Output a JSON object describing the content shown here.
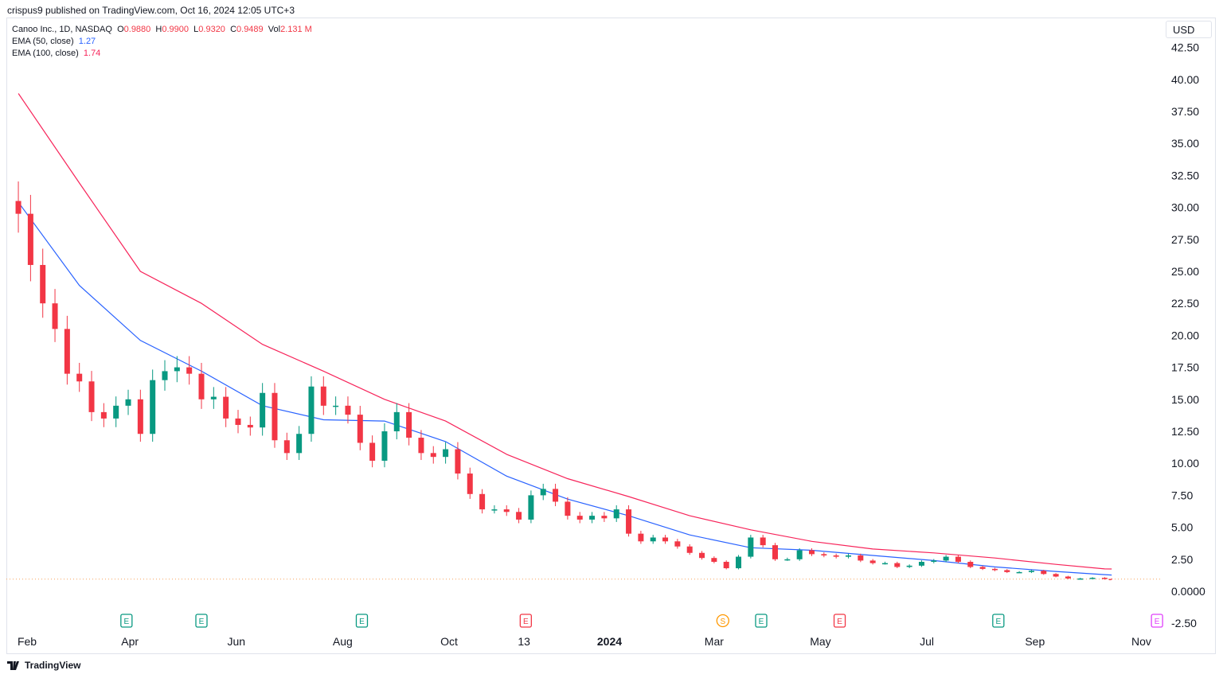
{
  "header": {
    "published": "crispus9 published on TradingView.com, Oct 16, 2024 12:05 UTC+3"
  },
  "legend": {
    "symbol": "Canoo Inc., 1D, NASDAQ",
    "o_label": "O",
    "o": "0.9880",
    "h_label": "H",
    "h": "0.9900",
    "l_label": "L",
    "l": "0.9320",
    "c_label": "C",
    "c": "0.9489",
    "vol_label": "Vol",
    "vol": "2.131 M",
    "ema50_label": "EMA (50, close)",
    "ema50": "1.27",
    "ema100_label": "EMA (100, close)",
    "ema100": "1.74"
  },
  "currency": "USD",
  "footer": {
    "brand": "TradingView"
  },
  "colors": {
    "up": "#089981",
    "down": "#f23645",
    "ema50": "#2962ff",
    "ema100": "#f7245a",
    "last_price_line": "#f7a35c"
  },
  "chart_data": {
    "type": "candlestick",
    "ylim": [
      -2.5,
      42.5
    ],
    "y_ticks": [
      "42.50",
      "40.00",
      "37.50",
      "35.00",
      "32.50",
      "30.00",
      "27.50",
      "25.00",
      "22.50",
      "20.00",
      "17.50",
      "15.00",
      "12.50",
      "10.00",
      "7.50",
      "5.00",
      "2.50",
      "0.0000",
      "-2.50"
    ],
    "y_tick_values": [
      42.5,
      40,
      37.5,
      35,
      32.5,
      30,
      27.5,
      25,
      22.5,
      20,
      17.5,
      15,
      12.5,
      10,
      7.5,
      5,
      2.5,
      0,
      -2.5
    ],
    "x_ticks": [
      {
        "label": "Feb",
        "date": "2023-02-01"
      },
      {
        "label": "Apr",
        "date": "2023-04-01"
      },
      {
        "label": "Jun",
        "date": "2023-06-01"
      },
      {
        "label": "Aug",
        "date": "2023-08-01"
      },
      {
        "label": "Oct",
        "date": "2023-10-01"
      },
      {
        "label": "13",
        "date": "2023-11-13"
      },
      {
        "label": "2024",
        "date": "2024-01-01",
        "bold": true
      },
      {
        "label": "Mar",
        "date": "2024-03-01"
      },
      {
        "label": "May",
        "date": "2024-05-01"
      },
      {
        "label": "Jul",
        "date": "2024-07-01"
      },
      {
        "label": "Sep",
        "date": "2024-09-01"
      },
      {
        "label": "Nov",
        "date": "2024-11-01"
      }
    ],
    "dates": [
      "2023-01-27",
      "2023-02-03",
      "2023-02-10",
      "2023-02-17",
      "2023-02-24",
      "2023-03-03",
      "2023-03-10",
      "2023-03-17",
      "2023-03-24",
      "2023-03-31",
      "2023-04-07",
      "2023-04-14",
      "2023-04-21",
      "2023-04-28",
      "2023-05-05",
      "2023-05-12",
      "2023-05-19",
      "2023-05-26",
      "2023-06-02",
      "2023-06-09",
      "2023-06-16",
      "2023-06-23",
      "2023-06-30",
      "2023-07-07",
      "2023-07-14",
      "2023-07-21",
      "2023-07-28",
      "2023-08-04",
      "2023-08-11",
      "2023-08-18",
      "2023-08-25",
      "2023-09-01",
      "2023-09-08",
      "2023-09-15",
      "2023-09-22",
      "2023-09-29",
      "2023-10-06",
      "2023-10-13",
      "2023-10-20",
      "2023-10-27",
      "2023-11-03",
      "2023-11-10",
      "2023-11-17",
      "2023-11-24",
      "2023-12-01",
      "2023-12-08",
      "2023-12-15",
      "2023-12-22",
      "2023-12-29",
      "2024-01-05",
      "2024-01-12",
      "2024-01-19",
      "2024-01-26",
      "2024-02-02",
      "2024-02-09",
      "2024-02-16",
      "2024-02-23",
      "2024-03-01",
      "2024-03-08",
      "2024-03-15",
      "2024-03-22",
      "2024-03-29",
      "2024-04-05",
      "2024-04-12",
      "2024-04-19",
      "2024-04-26",
      "2024-05-03",
      "2024-05-10",
      "2024-05-17",
      "2024-05-24",
      "2024-05-31",
      "2024-06-07",
      "2024-06-14",
      "2024-06-21",
      "2024-06-28",
      "2024-07-05",
      "2024-07-12",
      "2024-07-19",
      "2024-07-26",
      "2024-08-02",
      "2024-08-09",
      "2024-08-16",
      "2024-08-23",
      "2024-08-30",
      "2024-09-06",
      "2024-09-13",
      "2024-09-20",
      "2024-09-27",
      "2024-10-04",
      "2024-10-11",
      "2024-10-15"
    ],
    "close": [
      29.5,
      25.5,
      22.5,
      20.5,
      17.0,
      16.4,
      14.0,
      13.5,
      14.5,
      15.0,
      12.3,
      16.5,
      17.2,
      17.5,
      17.0,
      15.0,
      15.2,
      13.5,
      13.0,
      12.8,
      15.5,
      11.8,
      10.8,
      12.3,
      16.0,
      14.5,
      14.5,
      13.8,
      11.6,
      10.2,
      12.5,
      14.0,
      12.0,
      10.8,
      10.5,
      11.1,
      9.2,
      7.6,
      6.4,
      6.4,
      6.2,
      5.6,
      7.5,
      8.0,
      7.0,
      5.9,
      5.6,
      5.9,
      5.7,
      6.4,
      4.5,
      3.9,
      4.2,
      3.9,
      3.5,
      3.0,
      2.6,
      2.3,
      1.8,
      2.7,
      4.2,
      3.6,
      2.5,
      2.5,
      3.2,
      2.9,
      2.8,
      2.7,
      2.8,
      2.4,
      2.2,
      2.2,
      1.9,
      2.0,
      2.3,
      2.4,
      2.7,
      2.3,
      1.9,
      1.75,
      1.65,
      1.5,
      1.5,
      1.6,
      1.35,
      1.15,
      1.0,
      1.0,
      1.05,
      0.96,
      0.9489
    ],
    "first_open": 30.5,
    "ema": [
      {
        "name": "EMA (50, close)",
        "dates": [
          "2023-01-27",
          "2023-03-03",
          "2023-04-07",
          "2023-05-12",
          "2023-06-16",
          "2023-07-21",
          "2023-08-25",
          "2023-09-29",
          "2023-11-03",
          "2023-12-08",
          "2024-01-12",
          "2024-02-16",
          "2024-03-22",
          "2024-04-26",
          "2024-05-31",
          "2024-07-05",
          "2024-08-09",
          "2024-09-13",
          "2024-10-11",
          "2024-10-15"
        ],
        "values": [
          30.4,
          23.9,
          19.6,
          17.2,
          14.5,
          13.4,
          13.3,
          11.7,
          9.0,
          7.2,
          5.9,
          4.4,
          3.4,
          3.2,
          2.8,
          2.4,
          1.9,
          1.55,
          1.3,
          1.27
        ]
      },
      {
        "name": "EMA (100, close)",
        "dates": [
          "2023-01-27",
          "2023-03-03",
          "2023-04-07",
          "2023-05-12",
          "2023-06-16",
          "2023-07-21",
          "2023-08-25",
          "2023-09-29",
          "2023-11-03",
          "2023-12-08",
          "2024-01-12",
          "2024-02-16",
          "2024-03-22",
          "2024-04-26",
          "2024-05-31",
          "2024-07-05",
          "2024-08-09",
          "2024-09-13",
          "2024-10-11",
          "2024-10-15"
        ],
        "values": [
          38.9,
          31.9,
          25.0,
          22.5,
          19.3,
          17.2,
          15.0,
          13.3,
          10.7,
          8.8,
          7.4,
          5.9,
          4.8,
          3.9,
          3.3,
          3.0,
          2.6,
          2.1,
          1.75,
          1.74
        ]
      }
    ],
    "last_price": 0.9489,
    "events": [
      {
        "label": "E",
        "date": "2023-03-30",
        "kind": "earnings-beat"
      },
      {
        "label": "E",
        "date": "2023-05-12",
        "kind": "earnings-beat"
      },
      {
        "label": "E",
        "date": "2023-08-12",
        "kind": "earnings-beat"
      },
      {
        "label": "E",
        "date": "2023-11-14",
        "kind": "earnings-miss"
      },
      {
        "label": "S",
        "date": "2024-03-06",
        "kind": "split"
      },
      {
        "label": "E",
        "date": "2024-03-28",
        "kind": "earnings-beat"
      },
      {
        "label": "E",
        "date": "2024-05-12",
        "kind": "earnings-miss"
      },
      {
        "label": "E",
        "date": "2024-08-11",
        "kind": "earnings-beat"
      },
      {
        "label": "E",
        "date": "2024-11-10",
        "kind": "earnings-upcoming"
      }
    ]
  }
}
